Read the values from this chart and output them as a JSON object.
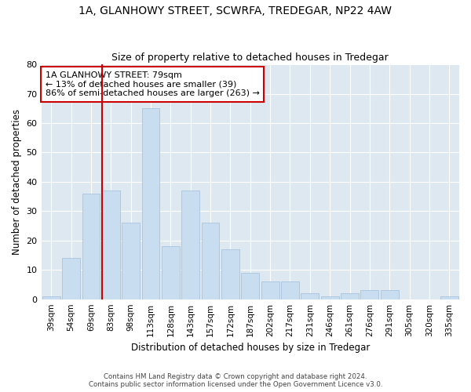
{
  "title1": "1A, GLANHOWY STREET, SCWRFA, TREDEGAR, NP22 4AW",
  "title2": "Size of property relative to detached houses in Tredegar",
  "xlabel": "Distribution of detached houses by size in Tredegar",
  "ylabel": "Number of detached properties",
  "bar_labels": [
    "39sqm",
    "54sqm",
    "69sqm",
    "83sqm",
    "98sqm",
    "113sqm",
    "128sqm",
    "143sqm",
    "157sqm",
    "172sqm",
    "187sqm",
    "202sqm",
    "217sqm",
    "231sqm",
    "246sqm",
    "261sqm",
    "276sqm",
    "291sqm",
    "305sqm",
    "320sqm",
    "335sqm"
  ],
  "bar_values": [
    1,
    14,
    36,
    37,
    26,
    65,
    18,
    37,
    26,
    17,
    9,
    6,
    6,
    2,
    1,
    2,
    3,
    3,
    0,
    0,
    1
  ],
  "bar_color": "#c9ddf0",
  "bar_edge_color": "#a0bcd8",
  "vline_color": "#cc0000",
  "annotation_title": "1A GLANHOWY STREET: 79sqm",
  "annotation_line1": "← 13% of detached houses are smaller (39)",
  "annotation_line2": "86% of semi-detached houses are larger (263) →",
  "annotation_box_color": "#ffffff",
  "annotation_box_edge": "#cc0000",
  "ylim": [
    0,
    80
  ],
  "yticks": [
    0,
    10,
    20,
    30,
    40,
    50,
    60,
    70,
    80
  ],
  "footer1": "Contains HM Land Registry data © Crown copyright and database right 2024.",
  "footer2": "Contains public sector information licensed under the Open Government Licence v3.0.",
  "fig_bg_color": "#ffffff",
  "plot_bg_color": "#dde8f0"
}
